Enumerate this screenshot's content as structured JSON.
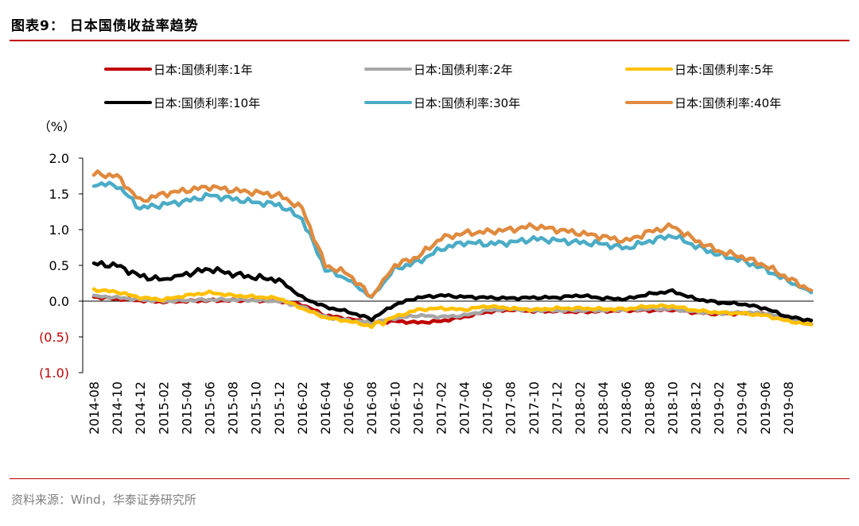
{
  "figure": {
    "title": "图表9： 日本国债收益率趋势",
    "source": "资料来源：Wind，华泰证券研究所"
  },
  "chart_data": {
    "type": "line",
    "title": "日本国债收益率趋势",
    "ylabel": "（%）",
    "ylim": [
      -1.0,
      2.0
    ],
    "ytick_labels": [
      "2.0",
      "1.5",
      "1.0",
      "0.5",
      "0.0",
      "(0.5)",
      "(1.0)"
    ],
    "ytick_values": [
      2.0,
      1.5,
      1.0,
      0.5,
      0.0,
      -0.5,
      -1.0
    ],
    "negative_tick_color": "#c00000",
    "x": [
      "2014-08",
      "2014-10",
      "2014-12",
      "2015-02",
      "2015-04",
      "2015-06",
      "2015-08",
      "2015-10",
      "2015-12",
      "2016-02",
      "2016-04",
      "2016-06",
      "2016-08",
      "2016-10",
      "2016-12",
      "2017-02",
      "2017-04",
      "2017-06",
      "2017-08",
      "2017-10",
      "2017-12",
      "2018-02",
      "2018-04",
      "2018-06",
      "2018-08",
      "2018-10",
      "2018-12",
      "2019-02",
      "2019-04",
      "2019-06",
      "2019-08",
      "2019-09"
    ],
    "xtick_labels": [
      "2014-08",
      "2014-10",
      "2014-12",
      "2015-02",
      "2015-04",
      "2015-06",
      "2015-08",
      "2015-10",
      "2015-12",
      "2016-02",
      "2016-04",
      "2016-06",
      "2016-08",
      "2016-10",
      "2016-12",
      "2017-02",
      "2017-04",
      "2017-06",
      "2017-08",
      "2017-10",
      "2017-12",
      "2018-02",
      "2018-04",
      "2018-06",
      "2018-08",
      "2018-10",
      "2018-12",
      "2019-02",
      "2019-04",
      "2019-06",
      "2019-08"
    ],
    "legend_placement": "top",
    "grid": false,
    "series": [
      {
        "name": "日本:国债利率:1年",
        "color": "#c00000",
        "values": [
          0.06,
          0.03,
          0.01,
          -0.01,
          0.0,
          0.01,
          0.01,
          0.01,
          0.0,
          -0.05,
          -0.2,
          -0.25,
          -0.3,
          -0.28,
          -0.3,
          -0.28,
          -0.22,
          -0.15,
          -0.12,
          -0.14,
          -0.14,
          -0.15,
          -0.14,
          -0.13,
          -0.13,
          -0.12,
          -0.16,
          -0.18,
          -0.17,
          -0.18,
          -0.26,
          -0.32
        ]
      },
      {
        "name": "日本:国债利率:2年",
        "color": "#a6a6a6",
        "values": [
          0.07,
          0.05,
          0.02,
          0.0,
          0.01,
          0.02,
          0.02,
          0.01,
          0.0,
          -0.08,
          -0.22,
          -0.27,
          -0.3,
          -0.24,
          -0.2,
          -0.22,
          -0.2,
          -0.13,
          -0.11,
          -0.13,
          -0.13,
          -0.13,
          -0.13,
          -0.12,
          -0.11,
          -0.11,
          -0.15,
          -0.17,
          -0.16,
          -0.17,
          -0.25,
          -0.32
        ]
      },
      {
        "name": "日本:国债利率:5年",
        "color": "#ffc000",
        "values": [
          0.16,
          0.13,
          0.05,
          0.02,
          0.08,
          0.12,
          0.08,
          0.06,
          0.04,
          -0.1,
          -0.23,
          -0.28,
          -0.35,
          -0.22,
          -0.12,
          -0.1,
          -0.12,
          -0.07,
          -0.1,
          -0.12,
          -0.1,
          -0.1,
          -0.11,
          -0.11,
          -0.07,
          -0.07,
          -0.13,
          -0.16,
          -0.17,
          -0.2,
          -0.28,
          -0.33
        ]
      },
      {
        "name": "日本:国债利率:10年",
        "color": "#000000",
        "values": [
          0.52,
          0.5,
          0.35,
          0.3,
          0.38,
          0.45,
          0.38,
          0.33,
          0.3,
          0.05,
          -0.08,
          -0.15,
          -0.25,
          -0.05,
          0.05,
          0.08,
          0.06,
          0.05,
          0.04,
          0.05,
          0.05,
          0.08,
          0.04,
          0.03,
          0.1,
          0.14,
          0.03,
          -0.02,
          -0.04,
          -0.1,
          -0.22,
          -0.27
        ]
      },
      {
        "name": "日本:国债利率:30年",
        "color": "#4bacc6",
        "values": [
          1.64,
          1.62,
          1.3,
          1.35,
          1.4,
          1.48,
          1.43,
          1.38,
          1.35,
          1.15,
          0.45,
          0.3,
          0.05,
          0.45,
          0.55,
          0.73,
          0.82,
          0.8,
          0.82,
          0.87,
          0.85,
          0.82,
          0.8,
          0.74,
          0.84,
          0.92,
          0.77,
          0.65,
          0.57,
          0.45,
          0.28,
          0.12
        ]
      },
      {
        "name": "日本:国债利率:40年",
        "color": "#e08a3e",
        "values": [
          1.78,
          1.75,
          1.4,
          1.5,
          1.55,
          1.6,
          1.55,
          1.52,
          1.48,
          1.3,
          0.5,
          0.38,
          0.06,
          0.5,
          0.62,
          0.88,
          0.95,
          0.97,
          1.0,
          1.05,
          1.0,
          0.95,
          0.9,
          0.84,
          0.97,
          1.05,
          0.85,
          0.7,
          0.62,
          0.5,
          0.32,
          0.15
        ]
      }
    ]
  }
}
